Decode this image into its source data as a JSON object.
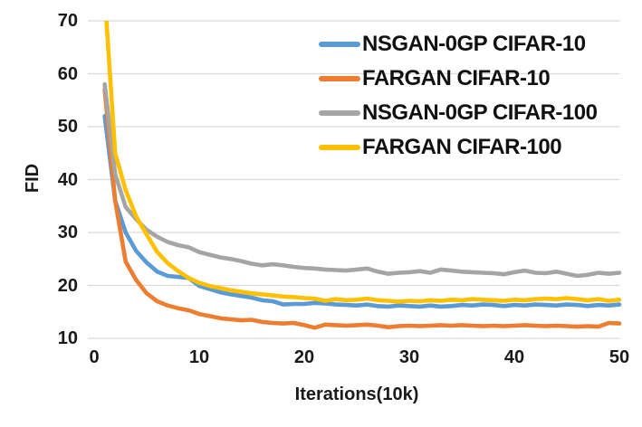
{
  "chart_data": {
    "type": "line",
    "title": "",
    "xlabel": "Iterations(10k)",
    "ylabel": "FID",
    "xlim": [
      0,
      50
    ],
    "ylim": [
      10,
      70
    ],
    "xticks": [
      0,
      10,
      20,
      30,
      40,
      50
    ],
    "yticks": [
      10,
      20,
      30,
      40,
      50,
      60,
      70
    ],
    "grid": "horizontal-only",
    "legend_position": "top-right-inside",
    "x": [
      1,
      2,
      3,
      4,
      5,
      6,
      7,
      8,
      9,
      10,
      11,
      12,
      13,
      14,
      15,
      16,
      17,
      18,
      19,
      20,
      21,
      22,
      23,
      24,
      25,
      26,
      27,
      28,
      29,
      30,
      31,
      32,
      33,
      34,
      35,
      36,
      37,
      38,
      39,
      40,
      41,
      42,
      43,
      44,
      45,
      46,
      47,
      48,
      49,
      50
    ],
    "series": [
      {
        "name": "NSGAN-0GP CIFAR-10",
        "color": "#5B9BD5",
        "values": [
          52.0,
          36.0,
          30.0,
          26.5,
          24.3,
          22.6,
          21.8,
          21.6,
          21.4,
          19.9,
          19.3,
          18.7,
          18.3,
          18.0,
          17.7,
          17.2,
          17.0,
          16.4,
          16.5,
          16.5,
          16.7,
          16.6,
          16.4,
          16.3,
          16.2,
          16.4,
          16.1,
          16.0,
          16.2,
          16.1,
          16.0,
          16.2,
          16.0,
          16.1,
          16.3,
          16.2,
          16.4,
          16.3,
          16.1,
          16.3,
          16.2,
          16.4,
          16.3,
          16.2,
          16.4,
          16.3,
          16.1,
          16.3,
          16.2,
          16.4
        ]
      },
      {
        "name": "FARGAN CIFAR-10",
        "color": "#ED7D31",
        "values": [
          57.0,
          36.0,
          24.5,
          21.0,
          18.5,
          17.0,
          16.2,
          15.7,
          15.3,
          14.6,
          14.2,
          13.8,
          13.6,
          13.4,
          13.5,
          13.1,
          12.9,
          12.8,
          12.9,
          12.5,
          12.0,
          12.6,
          12.5,
          12.4,
          12.5,
          12.6,
          12.4,
          12.1,
          12.3,
          12.4,
          12.3,
          12.4,
          12.5,
          12.4,
          12.5,
          12.4,
          12.3,
          12.4,
          12.3,
          12.4,
          12.5,
          12.4,
          12.3,
          12.4,
          12.3,
          12.2,
          12.3,
          12.2,
          12.9,
          12.8
        ]
      },
      {
        "name": "NSGAN-0GP CIFAR-100",
        "color": "#A5A5A5",
        "values": [
          58.0,
          41.0,
          34.8,
          32.5,
          30.5,
          29.2,
          28.2,
          27.6,
          27.2,
          26.3,
          25.8,
          25.3,
          25.0,
          24.6,
          24.1,
          23.8,
          24.0,
          23.8,
          23.5,
          23.3,
          23.2,
          23.0,
          22.9,
          22.8,
          23.0,
          23.2,
          22.6,
          22.2,
          22.4,
          22.5,
          22.7,
          22.4,
          23.0,
          22.8,
          22.6,
          22.5,
          22.4,
          22.3,
          22.1,
          22.5,
          22.8,
          22.4,
          22.3,
          22.6,
          22.2,
          21.8,
          22.0,
          22.4,
          22.2,
          22.4
        ]
      },
      {
        "name": "FARGAN CIFAR-100",
        "color": "#FFC000",
        "values": [
          75.0,
          45.0,
          38.0,
          33.0,
          29.6,
          26.3,
          24.2,
          22.7,
          21.4,
          20.5,
          19.9,
          19.5,
          19.1,
          18.8,
          18.5,
          18.3,
          18.1,
          17.9,
          17.8,
          17.6,
          17.5,
          17.1,
          17.4,
          17.2,
          17.3,
          17.5,
          17.2,
          17.1,
          16.9,
          17.1,
          17.0,
          17.2,
          17.1,
          17.3,
          17.2,
          17.4,
          17.3,
          17.2,
          17.1,
          17.3,
          17.2,
          17.4,
          17.5,
          17.4,
          17.6,
          17.4,
          17.2,
          17.4,
          17.1,
          17.3
        ]
      }
    ],
    "colors": {
      "gridline": "#D9D9D9",
      "tick_text": "#1A1A1A",
      "background": "#FFFFFF"
    }
  }
}
